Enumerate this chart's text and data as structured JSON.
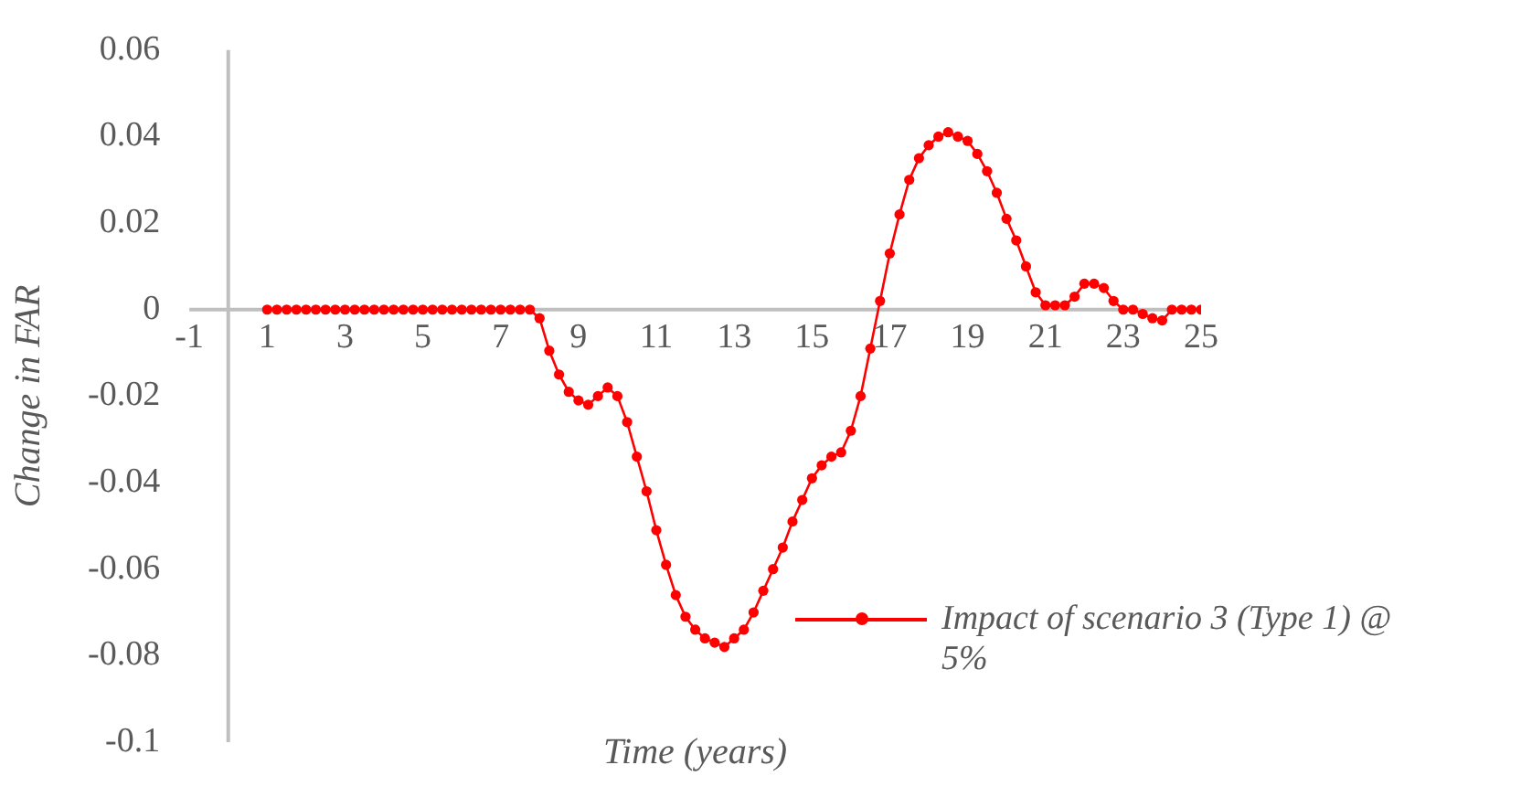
{
  "chart_data": {
    "type": "line",
    "xlabel": "Time (years)",
    "ylabel": "Change in FAR",
    "xlim": [
      -1,
      25
    ],
    "xticks": [
      -1,
      1,
      3,
      5,
      7,
      9,
      11,
      13,
      15,
      17,
      19,
      21,
      23,
      25
    ],
    "ylim": [
      -0.1,
      0.06
    ],
    "yticks": [
      -0.1,
      -0.08,
      -0.06,
      -0.04,
      -0.02,
      0,
      0.02,
      0.04,
      0.06
    ],
    "grid": false,
    "legend": "bottom right",
    "marker": "circle",
    "line_style": "solid",
    "x": [
      1,
      1.25,
      1.5,
      1.75,
      2,
      2.25,
      2.5,
      2.75,
      3,
      3.25,
      3.5,
      3.75,
      4,
      4.25,
      4.5,
      4.75,
      5,
      5.25,
      5.5,
      5.75,
      6,
      6.25,
      6.5,
      6.75,
      7,
      7.25,
      7.5,
      7.75,
      8,
      8.25,
      8.5,
      8.75,
      9,
      9.25,
      9.5,
      9.75,
      10,
      10.25,
      10.5,
      10.75,
      11,
      11.25,
      11.5,
      11.75,
      12,
      12.25,
      12.5,
      12.75,
      13,
      13.25,
      13.5,
      13.75,
      14,
      14.25,
      14.5,
      14.75,
      15,
      15.25,
      15.5,
      15.75,
      16,
      16.25,
      16.5,
      16.75,
      17,
      17.25,
      17.5,
      17.75,
      18,
      18.25,
      18.5,
      18.75,
      19,
      19.25,
      19.5,
      19.75,
      20,
      20.25,
      20.5,
      20.75,
      21,
      21.25,
      21.5,
      21.75,
      22,
      22.25,
      22.5,
      22.75,
      23,
      23.25,
      23.5,
      23.75,
      24,
      24.25,
      24.5,
      24.75,
      25
    ],
    "series": [
      {
        "name": "Impact of scenario 3 (Type 1) @ 5%",
        "color": "#ff0000",
        "values": [
          0,
          0,
          0,
          0,
          0,
          0,
          0,
          0,
          0,
          0,
          0,
          0,
          0,
          0,
          0,
          0,
          0,
          0,
          0,
          0,
          0,
          0,
          0,
          0,
          0,
          0,
          0,
          0,
          -0.002,
          -0.0095,
          -0.015,
          -0.019,
          -0.021,
          -0.022,
          -0.02,
          -0.018,
          -0.02,
          -0.026,
          -0.034,
          -0.042,
          -0.051,
          -0.059,
          -0.066,
          -0.071,
          -0.074,
          -0.076,
          -0.077,
          -0.078,
          -0.076,
          -0.074,
          -0.07,
          -0.065,
          -0.06,
          -0.055,
          -0.049,
          -0.044,
          -0.039,
          -0.036,
          -0.034,
          -0.033,
          -0.028,
          -0.02,
          -0.009,
          0.002,
          0.013,
          0.022,
          0.03,
          0.035,
          0.038,
          0.04,
          0.041,
          0.04,
          0.039,
          0.036,
          0.032,
          0.027,
          0.021,
          0.016,
          0.01,
          0.004,
          0.001,
          0.001,
          0.001,
          0.003,
          0.006,
          0.006,
          0.005,
          0.002,
          0,
          0,
          -0.001,
          -0.002,
          -0.0025,
          0,
          0,
          0,
          0
        ]
      }
    ]
  }
}
